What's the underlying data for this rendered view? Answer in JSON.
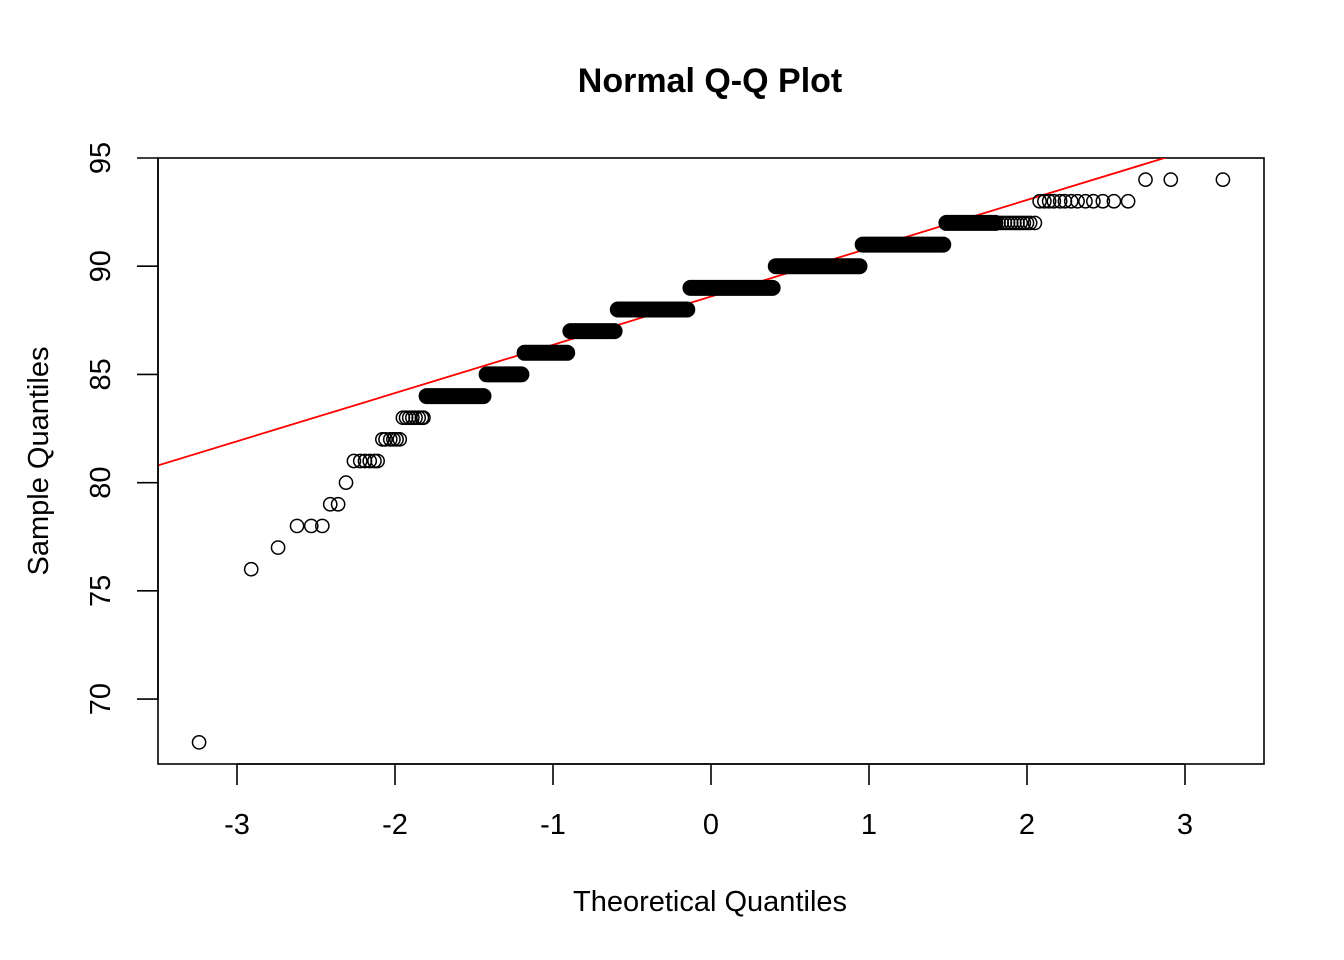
{
  "chart_data": {
    "type": "scatter",
    "title": "Normal Q-Q Plot",
    "xlabel": "Theoretical Quantiles",
    "ylabel": "Sample Quantiles",
    "xlim": [
      -3.5,
      3.5
    ],
    "ylim": [
      67,
      95
    ],
    "x_ticks": [
      -3,
      -2,
      -1,
      0,
      1,
      2,
      3
    ],
    "y_ticks": [
      70,
      75,
      80,
      85,
      90,
      95
    ],
    "x_tick_labels": [
      "-3",
      "-2",
      "-1",
      "0",
      "1",
      "2",
      "3"
    ],
    "y_tick_labels": [
      "70",
      "75",
      "80",
      "85",
      "90",
      "95"
    ],
    "grid": false,
    "point_color": "#000000",
    "line_color": "#ff0000",
    "reference_line": {
      "intercept": 88.6,
      "slope": 2.23
    },
    "points": [
      {
        "x": -3.24,
        "y": 68
      },
      {
        "x": -2.91,
        "y": 76
      },
      {
        "x": -2.74,
        "y": 77
      },
      {
        "x": -2.62,
        "y": 78
      },
      {
        "x": -2.53,
        "y": 78
      },
      {
        "x": -2.46,
        "y": 78
      },
      {
        "x": -2.41,
        "y": 79
      },
      {
        "x": -2.36,
        "y": 79
      },
      {
        "x": -2.31,
        "y": 80
      },
      {
        "x": -2.26,
        "y": 81
      },
      {
        "x": -2.22,
        "y": 81
      },
      {
        "x": -2.19,
        "y": 81
      },
      {
        "x": -2.16,
        "y": 81
      },
      {
        "x": -2.13,
        "y": 81
      },
      {
        "x": -2.11,
        "y": 81
      },
      {
        "x": -2.08,
        "y": 82
      },
      {
        "x": -2.06,
        "y": 82
      },
      {
        "x": -2.03,
        "y": 82
      },
      {
        "x": -2.01,
        "y": 82
      },
      {
        "x": -1.99,
        "y": 82
      },
      {
        "x": -1.97,
        "y": 82
      },
      {
        "x": -1.95,
        "y": 83
      },
      {
        "x": -1.93,
        "y": 83
      },
      {
        "x": -1.91,
        "y": 83
      },
      {
        "x": -1.89,
        "y": 83
      },
      {
        "x": -1.87,
        "y": 83
      },
      {
        "x": -1.85,
        "y": 83
      },
      {
        "x": -1.83,
        "y": 83
      },
      {
        "x": -1.82,
        "y": 83
      }
    ],
    "runs": [
      {
        "y": 84,
        "x_from": -1.8,
        "x_to": -1.44
      },
      {
        "y": 85,
        "x_from": -1.42,
        "x_to": -1.2
      },
      {
        "y": 86,
        "x_from": -1.18,
        "x_to": -0.91
      },
      {
        "y": 87,
        "x_from": -0.89,
        "x_to": -0.61
      },
      {
        "y": 88,
        "x_from": -0.59,
        "x_to": -0.15
      },
      {
        "y": 89,
        "x_from": -0.13,
        "x_to": 0.39
      },
      {
        "y": 90,
        "x_from": 0.41,
        "x_to": 0.94
      },
      {
        "y": 91,
        "x_from": 0.96,
        "x_to": 1.47
      },
      {
        "y": 92,
        "x_from": 1.49,
        "x_to": 1.8
      }
    ],
    "points_upper": [
      {
        "x": 1.82,
        "y": 92
      },
      {
        "x": 1.84,
        "y": 92
      },
      {
        "x": 1.86,
        "y": 92
      },
      {
        "x": 1.88,
        "y": 92
      },
      {
        "x": 1.9,
        "y": 92
      },
      {
        "x": 1.92,
        "y": 92
      },
      {
        "x": 1.94,
        "y": 92
      },
      {
        "x": 1.96,
        "y": 92
      },
      {
        "x": 1.98,
        "y": 92
      },
      {
        "x": 2.0,
        "y": 92
      },
      {
        "x": 2.02,
        "y": 92
      },
      {
        "x": 2.05,
        "y": 92
      },
      {
        "x": 2.08,
        "y": 93
      },
      {
        "x": 2.11,
        "y": 93
      },
      {
        "x": 2.14,
        "y": 93
      },
      {
        "x": 2.17,
        "y": 93
      },
      {
        "x": 2.21,
        "y": 93
      },
      {
        "x": 2.24,
        "y": 93
      },
      {
        "x": 2.28,
        "y": 93
      },
      {
        "x": 2.32,
        "y": 93
      },
      {
        "x": 2.37,
        "y": 93
      },
      {
        "x": 2.42,
        "y": 93
      },
      {
        "x": 2.48,
        "y": 93
      },
      {
        "x": 2.55,
        "y": 93
      },
      {
        "x": 2.64,
        "y": 93
      },
      {
        "x": 2.75,
        "y": 94
      },
      {
        "x": 2.91,
        "y": 94
      },
      {
        "x": 3.24,
        "y": 94
      }
    ]
  }
}
